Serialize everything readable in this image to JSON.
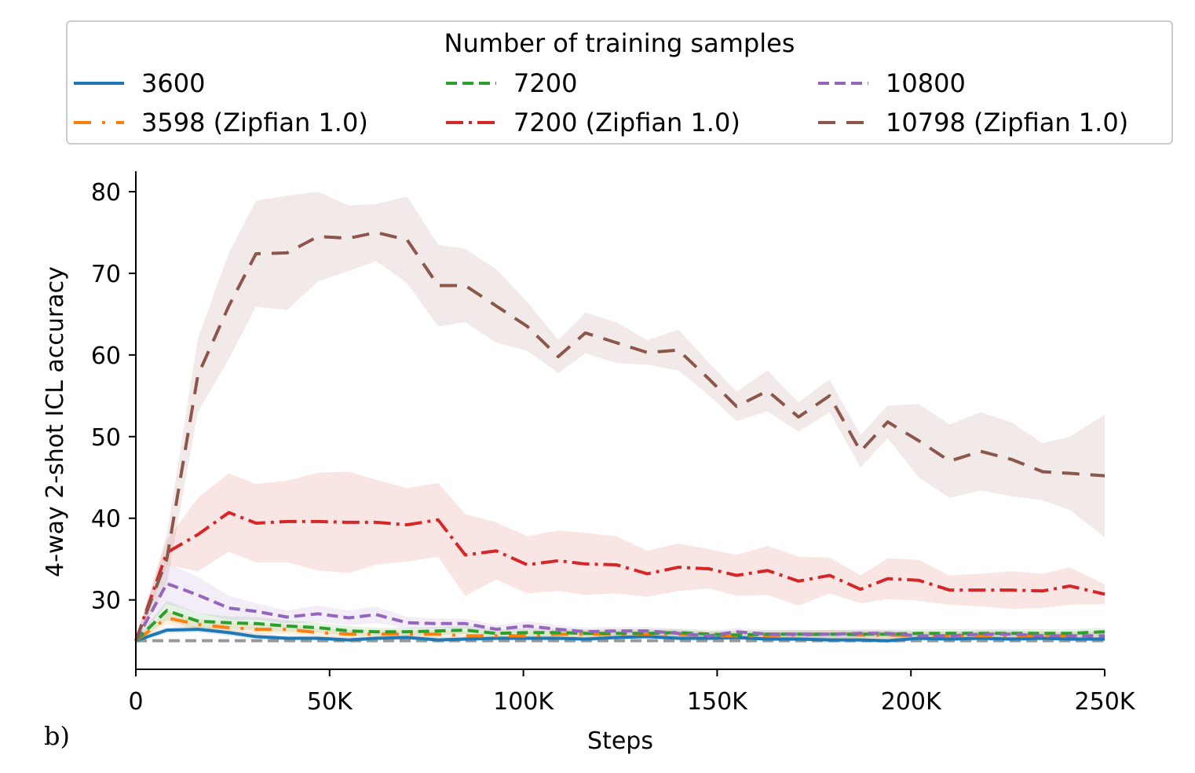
{
  "panel_label": "b)",
  "chart_data": {
    "type": "line",
    "xlabel": "Steps",
    "ylabel": "4-way 2-shot ICL accuracy",
    "xlim": [
      0,
      250000
    ],
    "ylim": [
      21.5,
      82.5
    ],
    "x_ticks": [
      0,
      50000,
      100000,
      150000,
      200000,
      250000
    ],
    "x_tick_labels": [
      "0",
      "50K",
      "100K",
      "150K",
      "200K",
      "250K"
    ],
    "y_ticks": [
      30,
      40,
      50,
      60,
      70,
      80
    ],
    "y_tick_labels": [
      "30",
      "40",
      "50",
      "60",
      "70",
      "80"
    ],
    "grid": false,
    "legend": {
      "title": "Number of training samples",
      "placement": "top",
      "columns": 3
    },
    "baseline": {
      "y": 25,
      "color": "#999999",
      "style": "dashed"
    },
    "x": [
      0,
      8000,
      16000,
      24000,
      31000,
      39000,
      47000,
      55000,
      62000,
      70000,
      78000,
      85000,
      93000,
      101000,
      109000,
      116000,
      124000,
      132000,
      140000,
      148000,
      155000,
      163000,
      171000,
      179000,
      187000,
      194000,
      202000,
      210000,
      218000,
      226000,
      234000,
      241000,
      250000
    ],
    "series": [
      {
        "name": "3600",
        "color": "#1f77b4",
        "dash": "solid",
        "values": [
          25.0,
          26.3,
          26.4,
          26.0,
          25.5,
          25.3,
          25.3,
          25.1,
          25.3,
          25.4,
          25.1,
          25.2,
          25.3,
          25.3,
          25.3,
          25.2,
          25.4,
          25.5,
          25.3,
          25.3,
          25.4,
          25.2,
          25.2,
          25.1,
          25.1,
          25.0,
          25.3,
          25.2,
          25.3,
          25.2,
          25.3,
          25.2,
          25.2
        ],
        "band": [
          0.3,
          0.4,
          0.4,
          0.4,
          0.4,
          0.3,
          0.3,
          0.3,
          0.3,
          0.3,
          0.3,
          0.3,
          0.3,
          0.3,
          0.3,
          0.3,
          0.3,
          0.3,
          0.3,
          0.3,
          0.3,
          0.3,
          0.3,
          0.3,
          0.3,
          0.3,
          0.3,
          0.3,
          0.3,
          0.3,
          0.3,
          0.3,
          0.3
        ]
      },
      {
        "name": "3598 (Zipfian 1.0)",
        "color": "#ff7f0e",
        "dash": "longdash-dot",
        "values": [
          25.0,
          27.8,
          27.0,
          26.6,
          26.4,
          26.4,
          26.0,
          25.8,
          25.8,
          25.8,
          25.8,
          25.6,
          25.6,
          25.6,
          25.8,
          25.8,
          25.8,
          25.8,
          25.8,
          25.6,
          25.6,
          25.6,
          25.7,
          25.8,
          25.7,
          25.7,
          25.6,
          25.6,
          25.6,
          25.6,
          25.6,
          25.6,
          25.6
        ],
        "band": [
          0.3,
          0.8,
          0.7,
          0.6,
          0.6,
          0.6,
          0.5,
          0.5,
          0.5,
          0.5,
          0.5,
          0.5,
          0.5,
          0.5,
          0.5,
          0.5,
          0.5,
          0.5,
          0.5,
          0.5,
          0.5,
          0.5,
          0.5,
          0.5,
          0.5,
          0.5,
          0.5,
          0.5,
          0.5,
          0.5,
          0.5,
          0.5,
          0.5
        ]
      },
      {
        "name": "7200",
        "color": "#2ca02c",
        "dash": "dashed",
        "values": [
          25.0,
          28.7,
          27.4,
          27.2,
          27.1,
          26.8,
          26.6,
          26.2,
          26.1,
          26.1,
          26.2,
          26.3,
          25.9,
          26.0,
          26.0,
          25.9,
          25.9,
          25.9,
          26.0,
          25.8,
          25.7,
          25.8,
          25.8,
          25.8,
          25.8,
          25.8,
          25.9,
          25.9,
          25.9,
          25.9,
          25.9,
          25.9,
          26.1
        ],
        "band": [
          0.3,
          1.2,
          1.0,
          0.8,
          0.8,
          0.7,
          0.6,
          0.6,
          0.5,
          0.5,
          0.5,
          0.5,
          0.5,
          0.5,
          0.5,
          0.5,
          0.5,
          0.5,
          0.5,
          0.5,
          0.5,
          0.5,
          0.5,
          0.5,
          0.5,
          0.5,
          0.5,
          0.5,
          0.5,
          0.5,
          0.5,
          0.5,
          0.5
        ]
      },
      {
        "name": "7200 (Zipfian 1.0)",
        "color": "#d62728",
        "dash": "dashdot",
        "values": [
          25.0,
          35.8,
          38.0,
          40.7,
          39.4,
          39.6,
          39.6,
          39.5,
          39.5,
          39.2,
          39.8,
          35.5,
          36.0,
          34.3,
          34.8,
          34.4,
          34.3,
          33.2,
          34.0,
          33.8,
          33.0,
          33.6,
          32.3,
          33.0,
          31.3,
          32.6,
          32.4,
          31.2,
          31.2,
          31.2,
          31.1,
          31.7,
          30.7
        ],
        "band": [
          0.3,
          1.5,
          4.5,
          4.8,
          4.8,
          5.0,
          6.0,
          6.2,
          5.2,
          4.5,
          4.5,
          5.0,
          3.5,
          3.5,
          3.7,
          3.8,
          3.5,
          2.8,
          2.9,
          2.4,
          2.5,
          3.0,
          3.0,
          2.2,
          1.7,
          2.5,
          2.5,
          1.8,
          2.0,
          2.3,
          2.1,
          2.3,
          1.2
        ]
      },
      {
        "name": "10800",
        "color": "#9467bd",
        "dash": "dashed",
        "values": [
          25.0,
          32.0,
          30.6,
          29.0,
          28.6,
          27.9,
          28.3,
          27.8,
          28.2,
          27.2,
          27.1,
          27.1,
          26.4,
          26.8,
          26.4,
          26.1,
          26.2,
          26.2,
          25.9,
          25.6,
          26.1,
          25.8,
          25.8,
          25.8,
          25.9,
          25.9,
          25.6,
          25.6,
          25.8,
          25.8,
          25.6,
          25.6,
          25.6
        ],
        "band": [
          0.3,
          2.5,
          2.2,
          1.5,
          1.0,
          0.8,
          1.0,
          0.9,
          1.0,
          0.7,
          0.6,
          0.6,
          0.5,
          0.6,
          0.5,
          0.5,
          0.5,
          0.5,
          0.5,
          0.5,
          0.5,
          0.5,
          0.5,
          0.5,
          0.5,
          0.5,
          0.5,
          0.5,
          0.5,
          0.5,
          0.5,
          0.5,
          0.5
        ]
      },
      {
        "name": "10798 (Zipfian 1.0)",
        "color": "#8c564b",
        "dash": "longdash",
        "values": [
          25.0,
          35.0,
          57.5,
          66.0,
          72.4,
          72.5,
          74.5,
          74.3,
          75.0,
          74.1,
          68.5,
          68.5,
          66.0,
          63.5,
          59.8,
          62.7,
          61.5,
          60.3,
          60.6,
          57.0,
          53.7,
          55.6,
          52.4,
          55.0,
          48.2,
          51.8,
          49.5,
          47.0,
          48.2,
          47.2,
          45.7,
          45.5,
          45.2
        ],
        "band": [
          0.3,
          3.0,
          4.5,
          6.5,
          6.5,
          7.0,
          5.5,
          4.0,
          3.5,
          5.3,
          5.0,
          4.5,
          4.5,
          3.0,
          2.0,
          2.5,
          2.5,
          1.5,
          2.5,
          2.0,
          1.8,
          2.5,
          1.8,
          2.0,
          2.0,
          2.0,
          4.5,
          4.5,
          4.8,
          4.5,
          3.5,
          4.5,
          7.5
        ]
      }
    ]
  }
}
